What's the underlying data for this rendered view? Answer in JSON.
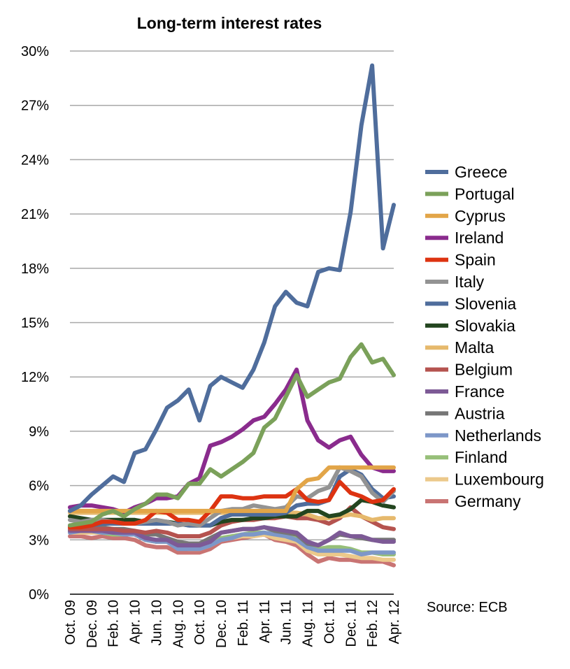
{
  "chart_data": {
    "type": "line",
    "title": "Long-term interest rates",
    "source": "Source: ECB",
    "ylim": [
      0,
      30
    ],
    "y_ticks": [
      0,
      3,
      6,
      9,
      12,
      15,
      18,
      21,
      24,
      27,
      30
    ],
    "y_tick_labels": [
      "0%",
      "3%",
      "6%",
      "9%",
      "12%",
      "15%",
      "18%",
      "21%",
      "24%",
      "27%",
      "30%"
    ],
    "legend_position": "right",
    "grid": true,
    "x": [
      "Oct. 09",
      "Nov. 09",
      "Dec. 09",
      "Jan. 10",
      "Feb. 10",
      "Mar. 10",
      "Apr. 10",
      "May 10",
      "Jun. 10",
      "Jul. 10",
      "Aug. 10",
      "Sep. 10",
      "Oct. 10",
      "Nov. 10",
      "Dec. 10",
      "Jan. 11",
      "Feb. 11",
      "Mar. 11",
      "Apr. 11",
      "May 11",
      "Jun. 11",
      "Jul. 11",
      "Aug. 11",
      "Sep. 11",
      "Oct. 11",
      "Nov. 11",
      "Dec. 11",
      "Jan. 12",
      "Feb. 12",
      "Mar. 12",
      "Apr. 12"
    ],
    "x_tick_labels": [
      "Oct. 09",
      "Dec. 09",
      "Feb. 10",
      "Apr. 10",
      "Jun. 10",
      "Aug. 10",
      "Oct. 10",
      "Dec. 10",
      "Feb. 11",
      "Apr. 11",
      "Jun. 11",
      "Aug. 11",
      "Oct. 11",
      "Dec. 11",
      "Feb. 12",
      "Apr. 12"
    ],
    "series": [
      {
        "name": "Greece",
        "color": "#4f6d9c",
        "values": [
          4.6,
          4.9,
          5.5,
          6.0,
          6.5,
          6.2,
          7.8,
          8.0,
          9.1,
          10.3,
          10.7,
          11.3,
          9.6,
          11.5,
          12.0,
          11.7,
          11.4,
          12.4,
          13.9,
          15.9,
          16.7,
          16.1,
          15.9,
          17.8,
          18.0,
          17.9,
          21.1,
          25.9,
          29.2,
          19.1,
          21.5
        ]
      },
      {
        "name": "Portugal",
        "color": "#7ba15a",
        "values": [
          3.8,
          3.9,
          4.0,
          4.4,
          4.6,
          4.3,
          4.7,
          5.0,
          5.5,
          5.5,
          5.3,
          6.1,
          6.1,
          6.9,
          6.5,
          6.9,
          7.3,
          7.8,
          9.2,
          9.7,
          10.9,
          12.1,
          10.9,
          11.3,
          11.7,
          11.9,
          13.1,
          13.8,
          12.8,
          13.0,
          12.1
        ]
      },
      {
        "name": "Cyprus",
        "color": "#e2a548",
        "values": [
          4.6,
          4.6,
          4.6,
          4.6,
          4.6,
          4.6,
          4.6,
          4.6,
          4.6,
          4.6,
          4.6,
          4.6,
          4.6,
          4.6,
          4.6,
          4.6,
          4.6,
          4.6,
          4.6,
          4.6,
          4.6,
          5.8,
          6.3,
          6.4,
          7.0,
          7.0,
          7.0,
          7.0,
          7.0,
          7.0,
          7.0
        ]
      },
      {
        "name": "Ireland",
        "color": "#8a2b8d",
        "values": [
          4.8,
          4.9,
          4.9,
          4.8,
          4.7,
          4.5,
          4.8,
          5.0,
          5.3,
          5.3,
          5.4,
          6.1,
          6.4,
          8.2,
          8.4,
          8.7,
          9.1,
          9.6,
          9.8,
          10.5,
          11.3,
          12.4,
          9.6,
          8.5,
          8.1,
          8.5,
          8.7,
          7.7,
          7.0,
          6.8,
          6.8
        ]
      },
      {
        "name": "Spain",
        "color": "#dd3311",
        "values": [
          3.7,
          3.7,
          3.8,
          4.0,
          4.0,
          3.9,
          3.9,
          4.1,
          4.6,
          4.5,
          4.1,
          4.1,
          4.0,
          4.6,
          5.4,
          5.4,
          5.3,
          5.3,
          5.4,
          5.4,
          5.4,
          5.8,
          5.2,
          5.1,
          5.2,
          6.2,
          5.6,
          5.4,
          5.1,
          5.2,
          5.8
        ]
      },
      {
        "name": "Italy",
        "color": "#939393",
        "values": [
          4.1,
          4.0,
          4.1,
          4.1,
          4.0,
          3.9,
          3.9,
          4.0,
          4.1,
          4.0,
          3.8,
          3.9,
          3.8,
          4.2,
          4.6,
          4.7,
          4.7,
          4.9,
          4.8,
          4.7,
          4.8,
          5.4,
          5.3,
          5.7,
          5.9,
          7.0,
          6.8,
          6.5,
          5.6,
          5.1,
          5.7
        ]
      },
      {
        "name": "Slovenia",
        "color": "#4f6d9c",
        "values": [
          3.8,
          3.8,
          3.8,
          3.9,
          3.9,
          3.9,
          3.9,
          3.9,
          3.9,
          3.9,
          3.9,
          3.8,
          3.8,
          3.8,
          4.2,
          4.4,
          4.4,
          4.4,
          4.4,
          4.4,
          4.5,
          4.9,
          5.0,
          5.0,
          5.2,
          6.5,
          6.9,
          6.6,
          5.8,
          5.3,
          5.4
        ]
      },
      {
        "name": "Slovakia",
        "color": "#23451f",
        "values": [
          4.3,
          4.2,
          4.1,
          4.1,
          4.1,
          4.1,
          4.1,
          4.0,
          4.0,
          4.0,
          3.9,
          3.8,
          3.8,
          3.8,
          4.0,
          4.1,
          4.1,
          4.2,
          4.2,
          4.3,
          4.3,
          4.3,
          4.6,
          4.6,
          4.3,
          4.4,
          4.7,
          5.2,
          5.1,
          4.9,
          4.8
        ]
      },
      {
        "name": "Malta",
        "color": "#e6b96c",
        "values": [
          4.5,
          4.5,
          4.5,
          4.5,
          4.5,
          4.5,
          4.5,
          4.5,
          4.5,
          4.5,
          4.5,
          4.5,
          4.5,
          4.5,
          4.5,
          4.5,
          4.5,
          4.5,
          4.5,
          4.5,
          4.5,
          4.5,
          4.4,
          4.2,
          4.2,
          4.3,
          4.4,
          4.3,
          4.1,
          4.2,
          4.2
        ]
      },
      {
        "name": "Belgium",
        "color": "#b5534f",
        "values": [
          3.6,
          3.6,
          3.6,
          3.6,
          3.6,
          3.5,
          3.5,
          3.4,
          3.5,
          3.4,
          3.2,
          3.2,
          3.2,
          3.4,
          3.8,
          4.0,
          4.1,
          4.1,
          4.2,
          4.2,
          4.3,
          4.2,
          4.2,
          4.1,
          3.9,
          4.2,
          4.8,
          4.3,
          4.0,
          3.7,
          3.6
        ]
      },
      {
        "name": "France",
        "color": "#7d5a96",
        "values": [
          3.5,
          3.5,
          3.5,
          3.5,
          3.4,
          3.4,
          3.4,
          3.1,
          3.0,
          3.0,
          2.7,
          2.7,
          2.7,
          2.9,
          3.4,
          3.5,
          3.6,
          3.6,
          3.7,
          3.6,
          3.5,
          3.4,
          2.9,
          2.7,
          3.0,
          3.4,
          3.2,
          3.2,
          3.0,
          2.9,
          2.9
        ]
      },
      {
        "name": "Austria",
        "color": "#767676",
        "values": [
          3.8,
          3.8,
          3.8,
          3.7,
          3.6,
          3.6,
          3.5,
          3.3,
          3.3,
          3.1,
          2.9,
          2.8,
          2.8,
          3.1,
          3.4,
          3.5,
          3.6,
          3.6,
          3.7,
          3.5,
          3.4,
          3.3,
          2.8,
          2.7,
          3.0,
          3.3,
          3.2,
          3.1,
          3.0,
          3.0,
          3.0
        ]
      },
      {
        "name": "Netherlands",
        "color": "#7d97c8",
        "values": [
          3.4,
          3.5,
          3.5,
          3.4,
          3.4,
          3.3,
          3.3,
          3.0,
          2.9,
          2.9,
          2.5,
          2.5,
          2.5,
          2.7,
          3.0,
          3.1,
          3.3,
          3.3,
          3.4,
          3.3,
          3.2,
          3.0,
          2.6,
          2.4,
          2.4,
          2.4,
          2.4,
          2.2,
          2.3,
          2.3,
          2.3
        ]
      },
      {
        "name": "Finland",
        "color": "#97bf79",
        "values": [
          3.5,
          3.5,
          3.5,
          3.4,
          3.3,
          3.3,
          3.3,
          3.0,
          2.9,
          2.9,
          2.6,
          2.6,
          2.6,
          2.8,
          3.1,
          3.2,
          3.3,
          3.4,
          3.4,
          3.3,
          3.3,
          3.2,
          2.8,
          2.5,
          2.6,
          2.6,
          2.5,
          2.3,
          2.3,
          2.2,
          2.2
        ]
      },
      {
        "name": "Luxembourg",
        "color": "#ecc98b",
        "values": [
          3.4,
          3.4,
          3.4,
          3.4,
          3.3,
          3.3,
          3.3,
          3.0,
          2.9,
          2.9,
          2.6,
          2.5,
          2.5,
          2.7,
          3.0,
          3.1,
          3.2,
          3.2,
          3.3,
          3.1,
          3.0,
          2.9,
          2.4,
          2.2,
          2.2,
          2.2,
          2.1,
          2.0,
          2.0,
          1.9,
          1.9
        ]
      },
      {
        "name": "Germany",
        "color": "#c97473",
        "values": [
          3.2,
          3.2,
          3.1,
          3.2,
          3.1,
          3.1,
          3.0,
          2.7,
          2.6,
          2.6,
          2.3,
          2.3,
          2.3,
          2.5,
          2.9,
          3.0,
          3.1,
          3.2,
          3.3,
          3.0,
          2.9,
          2.7,
          2.2,
          1.8,
          2.0,
          1.9,
          1.9,
          1.8,
          1.8,
          1.8,
          1.6
        ]
      }
    ]
  }
}
